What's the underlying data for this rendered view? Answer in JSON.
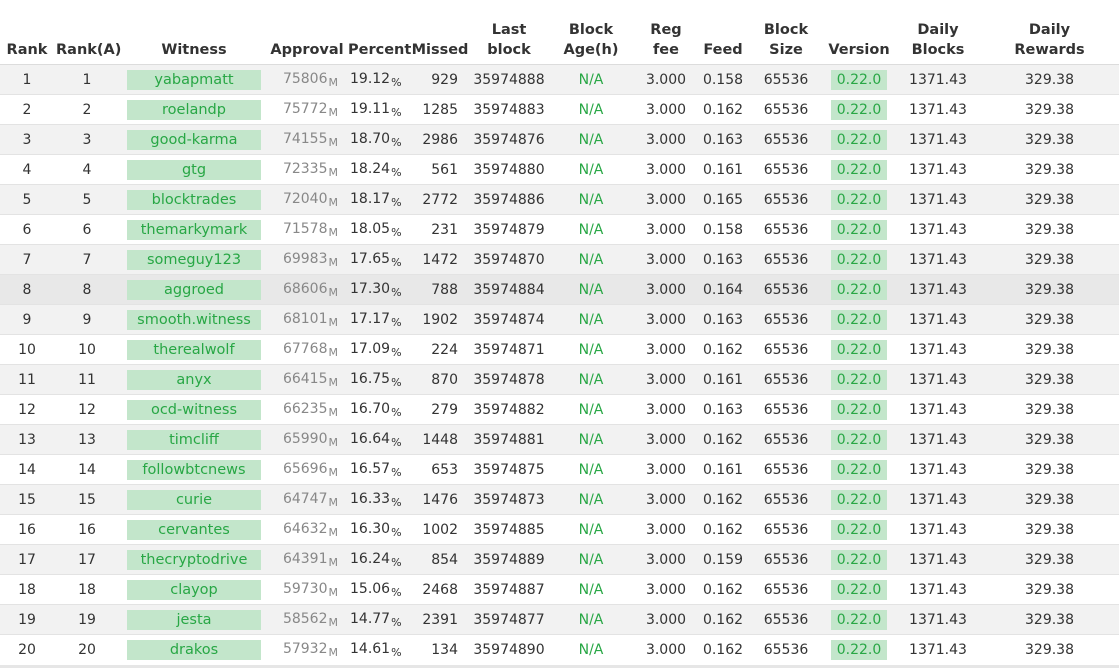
{
  "table": {
    "headers": {
      "rank": "Rank",
      "rank_a": "Rank(A)",
      "witness": "Witness",
      "approval": "Approval",
      "percent": "Percent",
      "missed": "Missed",
      "last_block_1": "Last",
      "last_block_2": "block",
      "block_age_1": "Block",
      "block_age_2": "Age(h)",
      "reg_fee_1": "Reg",
      "reg_fee_2": "fee",
      "feed": "Feed",
      "block_size_1": "Block",
      "block_size_2": "Size",
      "version": "Version",
      "daily_blocks_1": "Daily",
      "daily_blocks_2": "Blocks",
      "daily_rewards_1": "Daily",
      "daily_rewards_2": "Rewards"
    },
    "approval_unit": "M",
    "percent_unit": "%",
    "highlight_color": "#c3e6cb",
    "link_color": "#28a745",
    "rows": [
      {
        "rank": "1",
        "rank_a": "1",
        "witness": "yabapmatt",
        "approval": "75806",
        "percent": "19.12",
        "missed": "929",
        "last_block": "35974888",
        "block_age": "N/A",
        "reg_fee": "3.000",
        "feed": "0.158",
        "block_size": "65536",
        "version": "0.22.0",
        "daily_blocks": "1371.43",
        "daily_rewards": "329.38"
      },
      {
        "rank": "2",
        "rank_a": "2",
        "witness": "roelandp",
        "approval": "75772",
        "percent": "19.11",
        "missed": "1285",
        "last_block": "35974883",
        "block_age": "N/A",
        "reg_fee": "3.000",
        "feed": "0.162",
        "block_size": "65536",
        "version": "0.22.0",
        "daily_blocks": "1371.43",
        "daily_rewards": "329.38"
      },
      {
        "rank": "3",
        "rank_a": "3",
        "witness": "good-karma",
        "approval": "74155",
        "percent": "18.70",
        "missed": "2986",
        "last_block": "35974876",
        "block_age": "N/A",
        "reg_fee": "3.000",
        "feed": "0.163",
        "block_size": "65536",
        "version": "0.22.0",
        "daily_blocks": "1371.43",
        "daily_rewards": "329.38"
      },
      {
        "rank": "4",
        "rank_a": "4",
        "witness": "gtg",
        "approval": "72335",
        "percent": "18.24",
        "missed": "561",
        "last_block": "35974880",
        "block_age": "N/A",
        "reg_fee": "3.000",
        "feed": "0.161",
        "block_size": "65536",
        "version": "0.22.0",
        "daily_blocks": "1371.43",
        "daily_rewards": "329.38"
      },
      {
        "rank": "5",
        "rank_a": "5",
        "witness": "blocktrades",
        "approval": "72040",
        "percent": "18.17",
        "missed": "2772",
        "last_block": "35974886",
        "block_age": "N/A",
        "reg_fee": "3.000",
        "feed": "0.165",
        "block_size": "65536",
        "version": "0.22.0",
        "daily_blocks": "1371.43",
        "daily_rewards": "329.38"
      },
      {
        "rank": "6",
        "rank_a": "6",
        "witness": "themarkymark",
        "approval": "71578",
        "percent": "18.05",
        "missed": "231",
        "last_block": "35974879",
        "block_age": "N/A",
        "reg_fee": "3.000",
        "feed": "0.158",
        "block_size": "65536",
        "version": "0.22.0",
        "daily_blocks": "1371.43",
        "daily_rewards": "329.38"
      },
      {
        "rank": "7",
        "rank_a": "7",
        "witness": "someguy123",
        "approval": "69983",
        "percent": "17.65",
        "missed": "1472",
        "last_block": "35974870",
        "block_age": "N/A",
        "reg_fee": "3.000",
        "feed": "0.163",
        "block_size": "65536",
        "version": "0.22.0",
        "daily_blocks": "1371.43",
        "daily_rewards": "329.38"
      },
      {
        "rank": "8",
        "rank_a": "8",
        "witness": "aggroed",
        "approval": "68606",
        "percent": "17.30",
        "missed": "788",
        "last_block": "35974884",
        "block_age": "N/A",
        "reg_fee": "3.000",
        "feed": "0.164",
        "block_size": "65536",
        "version": "0.22.0",
        "daily_blocks": "1371.43",
        "daily_rewards": "329.38"
      },
      {
        "rank": "9",
        "rank_a": "9",
        "witness": "smooth.witness",
        "approval": "68101",
        "percent": "17.17",
        "missed": "1902",
        "last_block": "35974874",
        "block_age": "N/A",
        "reg_fee": "3.000",
        "feed": "0.163",
        "block_size": "65536",
        "version": "0.22.0",
        "daily_blocks": "1371.43",
        "daily_rewards": "329.38"
      },
      {
        "rank": "10",
        "rank_a": "10",
        "witness": "therealwolf",
        "approval": "67768",
        "percent": "17.09",
        "missed": "224",
        "last_block": "35974871",
        "block_age": "N/A",
        "reg_fee": "3.000",
        "feed": "0.162",
        "block_size": "65536",
        "version": "0.22.0",
        "daily_blocks": "1371.43",
        "daily_rewards": "329.38"
      },
      {
        "rank": "11",
        "rank_a": "11",
        "witness": "anyx",
        "approval": "66415",
        "percent": "16.75",
        "missed": "870",
        "last_block": "35974878",
        "block_age": "N/A",
        "reg_fee": "3.000",
        "feed": "0.161",
        "block_size": "65536",
        "version": "0.22.0",
        "daily_blocks": "1371.43",
        "daily_rewards": "329.38"
      },
      {
        "rank": "12",
        "rank_a": "12",
        "witness": "ocd-witness",
        "approval": "66235",
        "percent": "16.70",
        "missed": "279",
        "last_block": "35974882",
        "block_age": "N/A",
        "reg_fee": "3.000",
        "feed": "0.163",
        "block_size": "65536",
        "version": "0.22.0",
        "daily_blocks": "1371.43",
        "daily_rewards": "329.38"
      },
      {
        "rank": "13",
        "rank_a": "13",
        "witness": "timcliff",
        "approval": "65990",
        "percent": "16.64",
        "missed": "1448",
        "last_block": "35974881",
        "block_age": "N/A",
        "reg_fee": "3.000",
        "feed": "0.162",
        "block_size": "65536",
        "version": "0.22.0",
        "daily_blocks": "1371.43",
        "daily_rewards": "329.38"
      },
      {
        "rank": "14",
        "rank_a": "14",
        "witness": "followbtcnews",
        "approval": "65696",
        "percent": "16.57",
        "missed": "653",
        "last_block": "35974875",
        "block_age": "N/A",
        "reg_fee": "3.000",
        "feed": "0.161",
        "block_size": "65536",
        "version": "0.22.0",
        "daily_blocks": "1371.43",
        "daily_rewards": "329.38"
      },
      {
        "rank": "15",
        "rank_a": "15",
        "witness": "curie",
        "approval": "64747",
        "percent": "16.33",
        "missed": "1476",
        "last_block": "35974873",
        "block_age": "N/A",
        "reg_fee": "3.000",
        "feed": "0.162",
        "block_size": "65536",
        "version": "0.22.0",
        "daily_blocks": "1371.43",
        "daily_rewards": "329.38"
      },
      {
        "rank": "16",
        "rank_a": "16",
        "witness": "cervantes",
        "approval": "64632",
        "percent": "16.30",
        "missed": "1002",
        "last_block": "35974885",
        "block_age": "N/A",
        "reg_fee": "3.000",
        "feed": "0.162",
        "block_size": "65536",
        "version": "0.22.0",
        "daily_blocks": "1371.43",
        "daily_rewards": "329.38"
      },
      {
        "rank": "17",
        "rank_a": "17",
        "witness": "thecryptodrive",
        "approval": "64391",
        "percent": "16.24",
        "missed": "854",
        "last_block": "35974889",
        "block_age": "N/A",
        "reg_fee": "3.000",
        "feed": "0.159",
        "block_size": "65536",
        "version": "0.22.0",
        "daily_blocks": "1371.43",
        "daily_rewards": "329.38"
      },
      {
        "rank": "18",
        "rank_a": "18",
        "witness": "clayop",
        "approval": "59730",
        "percent": "15.06",
        "missed": "2468",
        "last_block": "35974887",
        "block_age": "N/A",
        "reg_fee": "3.000",
        "feed": "0.162",
        "block_size": "65536",
        "version": "0.22.0",
        "daily_blocks": "1371.43",
        "daily_rewards": "329.38"
      },
      {
        "rank": "19",
        "rank_a": "19",
        "witness": "jesta",
        "approval": "58562",
        "percent": "14.77",
        "missed": "2391",
        "last_block": "35974877",
        "block_age": "N/A",
        "reg_fee": "3.000",
        "feed": "0.162",
        "block_size": "65536",
        "version": "0.22.0",
        "daily_blocks": "1371.43",
        "daily_rewards": "329.38"
      },
      {
        "rank": "20",
        "rank_a": "20",
        "witness": "drakos",
        "approval": "57932",
        "percent": "14.61",
        "missed": "134",
        "last_block": "35974890",
        "block_age": "N/A",
        "reg_fee": "3.000",
        "feed": "0.162",
        "block_size": "65536",
        "version": "0.22.0",
        "daily_blocks": "1371.43",
        "daily_rewards": "329.38"
      }
    ]
  }
}
